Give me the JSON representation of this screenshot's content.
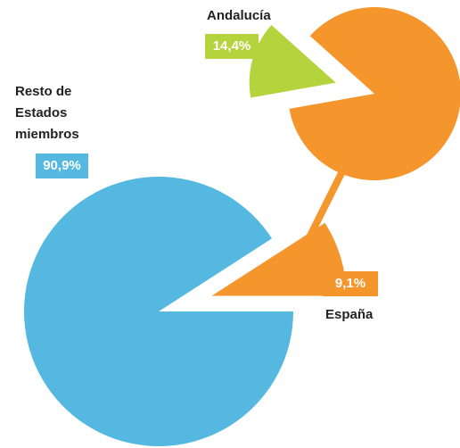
{
  "chart_data": [
    {
      "type": "pie",
      "categories": [
        "Resto de Estados miembros",
        "España"
      ],
      "values": [
        90.9,
        9.1
      ],
      "value_labels": [
        "90,9%",
        "9,1%"
      ],
      "colors": [
        "#55b8e0",
        "#f5962d"
      ]
    },
    {
      "type": "pie",
      "categories": [
        "Andalucía",
        null
      ],
      "values": [
        14.4,
        85.6
      ],
      "value_labels": [
        "14,4%",
        null
      ],
      "colors": [
        "#b5d33d",
        "#f5962d"
      ]
    }
  ]
}
